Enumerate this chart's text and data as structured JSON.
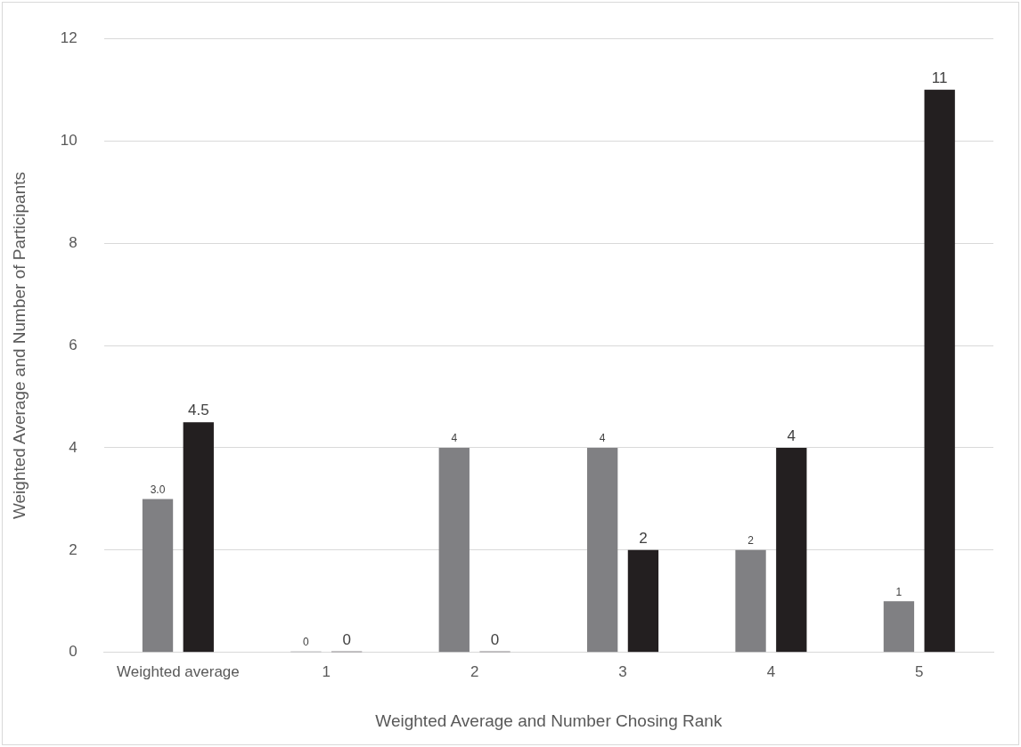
{
  "chart_data": {
    "type": "bar",
    "xlabel": "Weighted Average and Number Chosing Rank",
    "ylabel": "Weighted Average and Number of Participants",
    "categories": [
      "Weighted average",
      "1",
      "2",
      "3",
      "4",
      "5"
    ],
    "series": [
      {
        "color": "#808083",
        "values": [
          3.0,
          0,
          4,
          4,
          2,
          1
        ],
        "value_labels": [
          "3.0",
          "0",
          "4",
          "4",
          "2",
          "1"
        ]
      },
      {
        "color": "#231f20",
        "values": [
          4.5,
          0,
          0,
          2,
          4,
          11
        ],
        "value_labels": [
          "4.5",
          "0",
          "0",
          "2",
          "4",
          "11"
        ]
      }
    ],
    "ylim": [
      0,
      12
    ],
    "yticks": [
      0,
      2,
      4,
      6,
      8,
      10,
      12
    ],
    "grid": "y",
    "legend": false
  }
}
